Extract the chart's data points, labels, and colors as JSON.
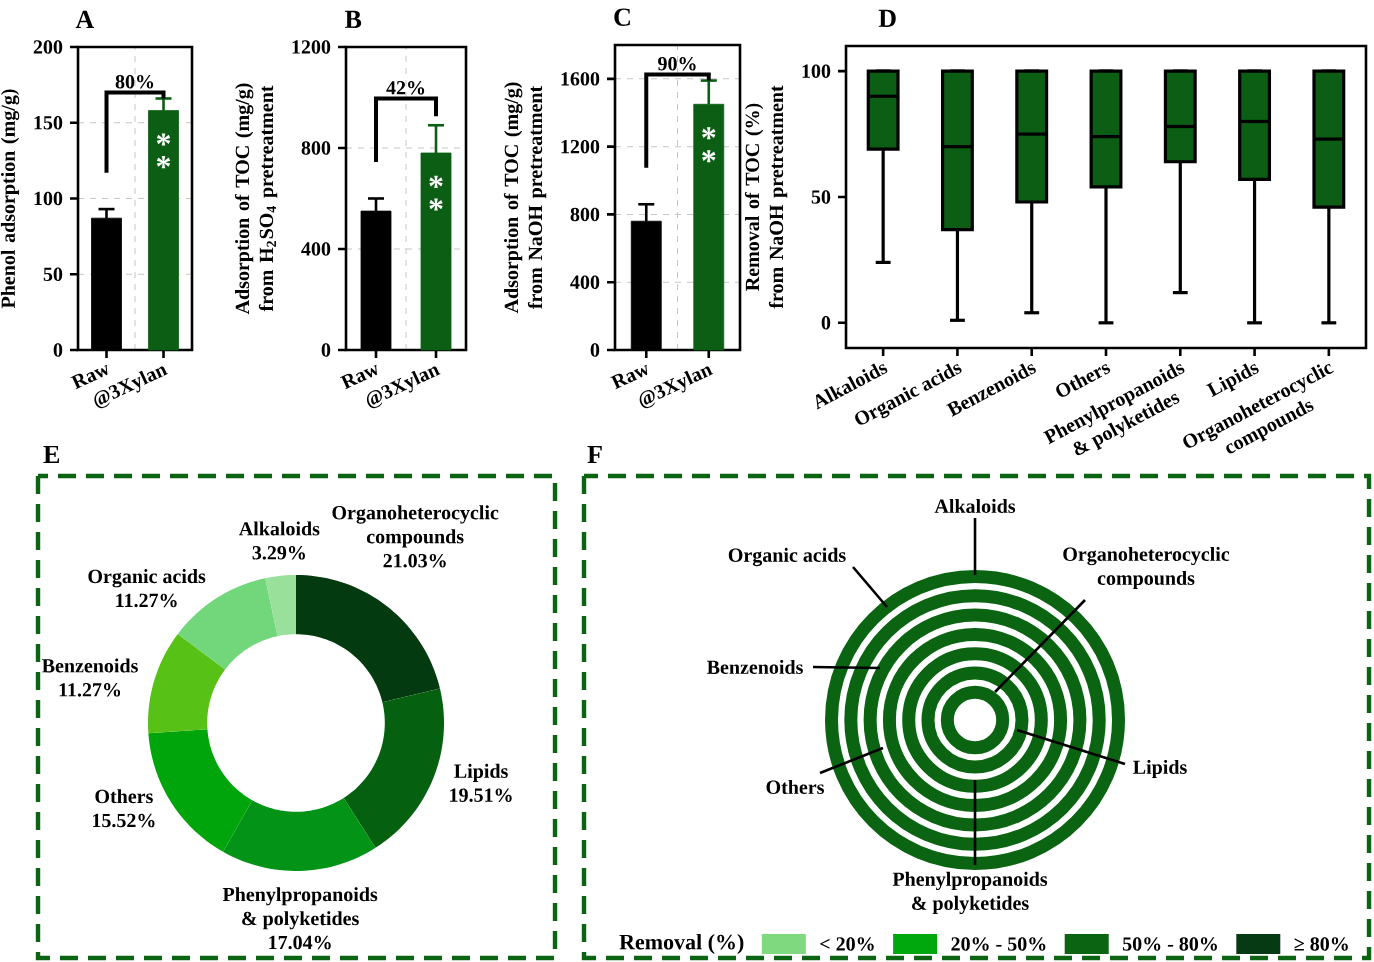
{
  "chart_data": [
    {
      "type": "bar",
      "title": "A",
      "ylabel": "Phenol adsorption (mg/g)",
      "categories": [
        "Raw",
        "@3Xylan"
      ],
      "values": [
        87,
        158
      ],
      "colors": [
        "#000000",
        "#0b5e14"
      ],
      "errors": [
        [
          87,
          93
        ],
        [
          158,
          166
        ]
      ],
      "ylim": [
        0,
        200
      ],
      "yticks": [
        0,
        50,
        100,
        150,
        200
      ],
      "grid": true,
      "annotations": [
        "80%",
        "*",
        "*"
      ]
    },
    {
      "type": "bar",
      "title": "B",
      "ylabel": "Adsorption of TOC (mg/g) from H$_{2}$SO$_{4}$ pretreatment",
      "categories": [
        "Raw",
        "@3Xylan"
      ],
      "values": [
        550,
        780
      ],
      "colors": [
        "#000000",
        "#0b5e14"
      ],
      "errors": [
        [
          550,
          600
        ],
        [
          780,
          890
        ]
      ],
      "ylim": [
        0,
        1200
      ],
      "yticks": [
        0,
        400,
        800,
        1200
      ],
      "grid": true,
      "annotations": [
        "42%",
        "*",
        "*"
      ]
    },
    {
      "type": "bar",
      "title": "C",
      "ylabel": "Adsorption of TOC (mg/g) from NaOH pretreatment",
      "categories": [
        "Raw",
        "@3Xylan"
      ],
      "values": [
        760,
        1450
      ],
      "colors": [
        "#000000",
        "#0b5e14"
      ],
      "errors": [
        [
          760,
          860
        ],
        [
          1450,
          1590
        ]
      ],
      "ylim": [
        0,
        1800
      ],
      "yticks": [
        0,
        400,
        800,
        1200,
        1600
      ],
      "grid": true,
      "annotations": [
        "90%",
        "*",
        "*"
      ]
    },
    {
      "type": "box",
      "title": "D",
      "ylabel": "Removal of TOC (%) from NaOH pretreatment",
      "categories": [
        "Alkaloids",
        "Organic acids",
        "Benzenoids",
        "Others",
        "Phenylpropanoids & polyketides",
        "Lipids",
        "Organoheterocyclic compounds"
      ],
      "color": "#0b5e14",
      "ylim": [
        -10,
        110
      ],
      "yticks": [
        0,
        50,
        100
      ],
      "boxes": [
        {
          "low": 24,
          "q1": 69,
          "median": 90,
          "q3": 100,
          "high": 100
        },
        {
          "low": 1,
          "q1": 37,
          "median": 70,
          "q3": 100,
          "high": 100
        },
        {
          "low": 4,
          "q1": 48,
          "median": 75,
          "q3": 100,
          "high": 100
        },
        {
          "low": 0,
          "q1": 54,
          "median": 74,
          "q3": 100,
          "high": 100
        },
        {
          "low": 12,
          "q1": 64,
          "median": 78,
          "q3": 100,
          "high": 100
        },
        {
          "low": 0,
          "q1": 57,
          "median": 80,
          "q3": 100,
          "high": 100
        },
        {
          "low": 0,
          "q1": 46,
          "median": 73,
          "q3": 100,
          "high": 100
        }
      ]
    },
    {
      "type": "donut",
      "title": "E",
      "categories": [
        "Organoheterocyclic compounds",
        "Lipids",
        "Phenylpropanoids & polyketides",
        "Others",
        "Benzenoids",
        "Organic acids",
        "Alkaloids"
      ],
      "values": [
        21.03,
        19.51,
        17.04,
        15.52,
        11.27,
        11.27,
        3.29
      ],
      "value_labels": [
        "21.03%",
        "19.51%",
        "17.04%",
        "15.52%",
        "11.27%",
        "11.27%",
        "3.29%"
      ],
      "colors": [
        "#033a10",
        "#05600f",
        "#039317",
        "#00a50c",
        "#58c116",
        "#72d67a",
        "#99e09b"
      ]
    },
    {
      "type": "other",
      "title": "F",
      "annotations": [
        "Alkaloids",
        "Organic acids",
        "Organoheterocyclic compounds",
        "Benzenoids",
        "Others",
        "Lipids",
        "Phenylpropanoids & polyketides"
      ],
      "legend_title": "Removal (%)",
      "legend": "bottom",
      "series": [
        {
          "name": "< 20%",
          "color": "#7fd97f"
        },
        {
          "name": "20% - 50%",
          "color": "#00a80e"
        },
        {
          "name": "50% - 80%",
          "color": "#0b6412"
        },
        {
          "name": "≥ 80%",
          "color": "#053a12"
        }
      ]
    }
  ]
}
